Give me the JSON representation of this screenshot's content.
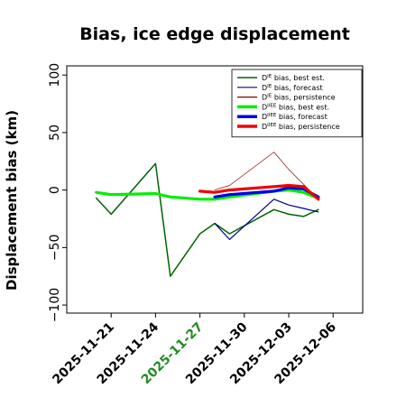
{
  "chart_data": {
    "type": "line",
    "title": "Bias, ice edge displacement",
    "ylabel": "Displacement bias (km)",
    "xlabel": "",
    "ylim": [
      -107,
      108
    ],
    "xlim": [
      "2025-11-18",
      "2025-12-08"
    ],
    "grid": false,
    "legend_position": "top-right",
    "y_ticks": [
      100,
      50,
      0,
      -50,
      -100
    ],
    "y_tick_labels": [
      "100",
      "50",
      "0",
      "−50",
      "−100"
    ],
    "x_ticks": [
      "2025-11-21",
      "2025-11-24",
      "2025-11-27",
      "2025-11-30",
      "2025-12-03",
      "2025-12-06"
    ],
    "x_tick_labels": [
      "2025-11-21",
      "2025-11-24",
      "2025-11-27",
      "2025-11-30",
      "2025-12-03",
      "2025-12-06"
    ],
    "x_tick_colors": [
      "#000000",
      "#000000",
      "#228B22",
      "#000000",
      "#000000",
      "#000000"
    ],
    "legend": [
      {
        "series": "de_best",
        "prefix": "D",
        "sup": "IE",
        "suffix": " bias, best est."
      },
      {
        "series": "de_fc",
        "prefix": "D",
        "sup": "IE",
        "suffix": " bias, forecast"
      },
      {
        "series": "de_pers",
        "prefix": "D",
        "sup": "IE",
        "suffix": " bias, persistence"
      },
      {
        "series": "dee_best",
        "prefix": "D",
        "sup": "IIEE",
        "suffix": " bias, best est."
      },
      {
        "series": "dee_fc",
        "prefix": "D",
        "sup": "IIEE",
        "suffix": " bias, forecast"
      },
      {
        "series": "dee_pers",
        "prefix": "D",
        "sup": "IIEE",
        "suffix": " bias, persistence"
      }
    ],
    "series": [
      {
        "id": "de_best",
        "color": "#006400",
        "width": 1.5,
        "points": [
          [
            "2025-11-20",
            -7
          ],
          [
            "2025-11-21",
            -21
          ],
          [
            "2025-11-24",
            23
          ],
          [
            "2025-11-25",
            -75
          ],
          [
            "2025-11-27",
            -38
          ],
          [
            "2025-11-28",
            -29
          ],
          [
            "2025-11-29",
            -38
          ],
          [
            "2025-12-02",
            -17
          ],
          [
            "2025-12-03",
            -21
          ],
          [
            "2025-12-04",
            -23
          ],
          [
            "2025-12-05",
            -17
          ]
        ]
      },
      {
        "id": "de_fc_thin",
        "color": "#006400",
        "width": 0.6,
        "points": [
          [
            "2025-11-21",
            -21
          ],
          [
            "2025-11-24",
            23
          ],
          [
            "2025-11-25",
            -75
          ]
        ]
      },
      {
        "id": "de_fc",
        "color": "#00008B",
        "width": 1.2,
        "points": [
          [
            "2025-11-28",
            -29
          ],
          [
            "2025-11-29",
            -43
          ],
          [
            "2025-12-02",
            -8
          ],
          [
            "2025-12-03",
            -13
          ],
          [
            "2025-12-04",
            -16
          ],
          [
            "2025-12-05",
            -19
          ]
        ]
      },
      {
        "id": "de_pers",
        "color": "#8B0000",
        "width": 0.7,
        "points": [
          [
            "2025-11-28",
            0
          ],
          [
            "2025-11-29",
            4
          ],
          [
            "2025-12-02",
            33
          ],
          [
            "2025-12-03",
            18
          ],
          [
            "2025-12-04",
            5
          ],
          [
            "2025-12-05",
            -8
          ]
        ]
      },
      {
        "id": "dee_best",
        "color": "#00EE00",
        "width": 3.2,
        "points": [
          [
            "2025-11-20",
            -2
          ],
          [
            "2025-11-21",
            -4
          ],
          [
            "2025-11-24",
            -3
          ],
          [
            "2025-11-25",
            -6
          ],
          [
            "2025-11-27",
            -8
          ],
          [
            "2025-11-28",
            -8
          ],
          [
            "2025-11-29",
            -6
          ],
          [
            "2025-12-02",
            -1
          ],
          [
            "2025-12-03",
            0
          ],
          [
            "2025-12-04",
            -2
          ],
          [
            "2025-12-05",
            -7
          ]
        ]
      },
      {
        "id": "dee_fc",
        "color": "#0000EE",
        "width": 3.2,
        "points": [
          [
            "2025-11-28",
            -6
          ],
          [
            "2025-11-29",
            -4
          ],
          [
            "2025-12-02",
            -1
          ],
          [
            "2025-12-03",
            2
          ],
          [
            "2025-12-04",
            1
          ],
          [
            "2025-12-05",
            -6
          ]
        ]
      },
      {
        "id": "dee_pers",
        "color": "#EE0000",
        "width": 3.2,
        "points": [
          [
            "2025-11-27",
            -1
          ],
          [
            "2025-11-28",
            -2
          ],
          [
            "2025-11-29",
            0
          ],
          [
            "2025-12-02",
            3
          ],
          [
            "2025-12-03",
            4
          ],
          [
            "2025-12-04",
            3
          ],
          [
            "2025-12-05",
            -8
          ]
        ]
      }
    ],
    "legend_styles": {
      "de_best": {
        "color": "#006400",
        "width": 1.5
      },
      "de_fc": {
        "color": "#00008B",
        "width": 1.2
      },
      "de_pers": {
        "color": "#8B0000",
        "width": 1.2
      },
      "dee_best": {
        "color": "#00EE00",
        "width": 3.5
      },
      "dee_fc": {
        "color": "#0000EE",
        "width": 3.5
      },
      "dee_pers": {
        "color": "#EE0000",
        "width": 3.5
      }
    }
  }
}
